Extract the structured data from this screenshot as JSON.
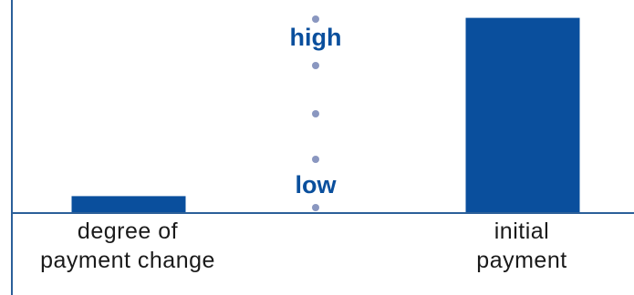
{
  "chart_data": {
    "type": "bar",
    "categories": [
      "degree of payment change",
      "initial payment"
    ],
    "category_lines": [
      [
        "degree of",
        "payment change"
      ],
      [
        "initial",
        "payment"
      ]
    ],
    "values": [
      0.08,
      0.97
    ],
    "ylim": [
      0,
      1
    ],
    "scale_labels": {
      "high": "high",
      "low": "low"
    },
    "grid": false,
    "legend": "none"
  },
  "colors": {
    "bar": "#0a4f9d",
    "axis": "#2b5f99",
    "dots": "#8a97c0",
    "scale_text": "#0a4f9d"
  }
}
